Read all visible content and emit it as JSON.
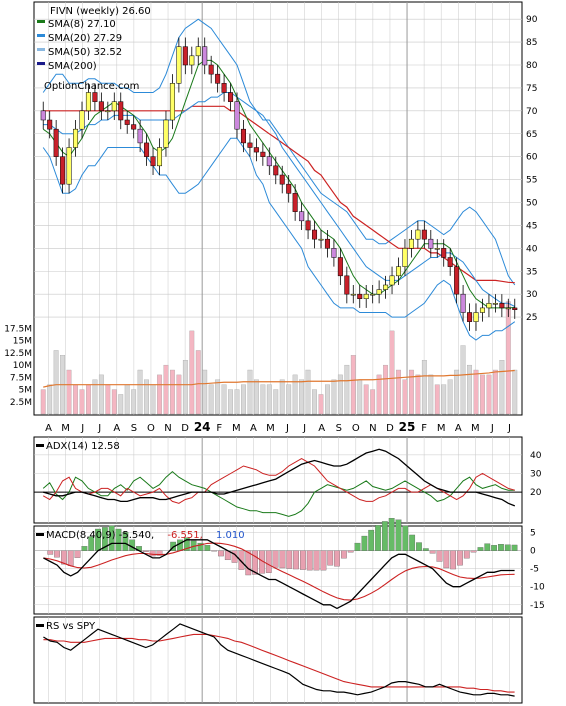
{
  "colors": {
    "frame": "#000000",
    "grid": "#c8c8c8",
    "up_candle": "#ffff66",
    "down_candle": "#c8202a",
    "bear_candle": "#cc88dd",
    "sma8": "#1a7a1a",
    "sma20": "#2c8ad8",
    "sma50": "#cc2222",
    "sma200": "#1a1a8a",
    "bband": "#2c8ad8",
    "vol_up": "#f4b6c2",
    "vol_down": "#d8d8d8",
    "vol_avg": "#e07830",
    "adx": "#000000",
    "di_plus": "#1a7a1a",
    "di_minus": "#cc2222",
    "macd": "#000000",
    "signal": "#cc2222",
    "hist_up": "#66bb66",
    "hist_down": "#e8a0b0",
    "rs_line": "#000000",
    "rs_ma": "#cc2222"
  },
  "chart_data": [
    {
      "type": "candlestick",
      "panel": "price",
      "title": "FIVN (weekly) 26.60",
      "watermark": "OptionChance.com",
      "legend": [
        {
          "label": "SMA(8) 27.10",
          "color": "#1a7a1a"
        },
        {
          "label": "SMA(20) 27.29",
          "color": "#2c8ad8"
        },
        {
          "label": "SMA(50) 32.52",
          "color": "#8ab8e0"
        },
        {
          "label": "SMA(200)",
          "color": "#1a1a8a"
        }
      ],
      "legend_placement": "top-left",
      "x_tick_labels": [
        "A",
        "M",
        "J",
        "J",
        "A",
        "S",
        "O",
        "N",
        "D",
        "24",
        "F",
        "M",
        "A",
        "M",
        "J",
        "J",
        "A",
        "S",
        "O",
        "N",
        "D",
        "25",
        "F",
        "M",
        "A",
        "M",
        "J",
        "J"
      ],
      "y_ticks": [
        25,
        30,
        35,
        40,
        45,
        50,
        55,
        60,
        65,
        70,
        75,
        80,
        85,
        90
      ],
      "ylim": [
        20,
        92
      ],
      "close": [
        68,
        66,
        60,
        54,
        62,
        66,
        70,
        74,
        72,
        70,
        70,
        72,
        68,
        67,
        66,
        63,
        60,
        58,
        62,
        68,
        76,
        84,
        80,
        82,
        84,
        80,
        78,
        76,
        74,
        72,
        66,
        63,
        62,
        61,
        60,
        58,
        56,
        54,
        52,
        48,
        46,
        44,
        42,
        42,
        40,
        38,
        34,
        30,
        30,
        29,
        30,
        30,
        31,
        32,
        34,
        36,
        40,
        42,
        44,
        42,
        40,
        40,
        38,
        36,
        30,
        26,
        24,
        26,
        27,
        28,
        28,
        27,
        27,
        26.6
      ],
      "sma8": [
        66,
        65,
        63,
        61,
        60,
        62,
        64,
        67,
        69,
        70,
        71,
        72,
        71,
        70,
        69,
        67,
        65,
        62,
        61,
        62,
        64,
        68,
        72,
        76,
        80,
        81,
        81,
        80,
        78,
        76,
        73,
        70,
        67,
        65,
        63,
        61,
        59,
        57,
        55,
        53,
        50,
        48,
        46,
        44,
        43,
        42,
        40,
        37,
        34,
        32,
        31,
        30,
        30,
        31,
        32,
        33,
        35,
        37,
        39,
        41,
        41,
        41,
        41,
        40,
        37,
        34,
        31,
        29,
        28,
        27,
        27,
        27,
        27,
        27.1
      ],
      "sma20": [
        67,
        67,
        66,
        65,
        65,
        65,
        66,
        67,
        67,
        68,
        68,
        69,
        69,
        69,
        69,
        68,
        68,
        68,
        68,
        68,
        68,
        69,
        70,
        71,
        72,
        72,
        73,
        73,
        74,
        74,
        73,
        72,
        71,
        70,
        69,
        67,
        65,
        62,
        60,
        58,
        56,
        54,
        52,
        50,
        48,
        46,
        44,
        42,
        40,
        38,
        36,
        35,
        34,
        33,
        33,
        33,
        34,
        35,
        36,
        37,
        38,
        38,
        39,
        39,
        38,
        37,
        35,
        33,
        31,
        30,
        29,
        28,
        28,
        27.3
      ],
      "sma50": [
        70,
        70,
        70,
        70,
        70,
        70,
        70,
        70,
        70,
        70,
        70,
        70,
        70,
        70,
        70,
        70,
        70,
        70,
        70,
        70,
        70,
        70,
        70,
        71,
        71,
        71,
        71,
        71,
        71,
        70,
        70,
        69,
        68,
        67,
        66,
        65,
        64,
        63,
        62,
        61,
        60,
        59,
        57,
        56,
        54,
        52,
        50,
        49,
        47,
        46,
        45,
        44,
        43,
        42,
        41,
        40,
        40,
        40,
        40,
        40,
        39,
        39,
        38,
        37,
        36,
        35,
        34,
        33,
        33,
        33,
        33,
        32.8,
        32.6,
        32.5
      ],
      "bb_upper": [
        74,
        76,
        78,
        78,
        76,
        76,
        76,
        77,
        77,
        76,
        76,
        76,
        75,
        75,
        74,
        74,
        74,
        74,
        75,
        78,
        82,
        86,
        88,
        89,
        90,
        89,
        88,
        86,
        84,
        82,
        80,
        76,
        72,
        70,
        68,
        68,
        66,
        64,
        62,
        60,
        58,
        56,
        54,
        52,
        51,
        50,
        49,
        48,
        46,
        44,
        42,
        42,
        41,
        41,
        42,
        43,
        44,
        45,
        46,
        46,
        45,
        44,
        43,
        44,
        46,
        48,
        49,
        48,
        46,
        44,
        42,
        38,
        34,
        32
      ],
      "bb_lower": [
        62,
        60,
        56,
        52,
        52,
        53,
        56,
        58,
        58,
        60,
        62,
        62,
        62,
        62,
        62,
        62,
        60,
        58,
        56,
        56,
        54,
        52,
        52,
        53,
        54,
        56,
        58,
        60,
        62,
        64,
        64,
        62,
        60,
        56,
        54,
        50,
        48,
        46,
        44,
        42,
        40,
        36,
        34,
        32,
        30,
        28,
        27,
        27,
        27,
        26,
        26,
        26,
        26,
        26,
        25,
        25,
        25,
        26,
        27,
        28,
        30,
        32,
        33,
        32,
        28,
        24,
        21,
        20,
        21,
        21,
        22,
        22,
        23,
        24
      ]
    },
    {
      "type": "bar",
      "panel": "volume",
      "y_ticks": [
        "2.5M",
        "5M",
        "7.5M",
        "10M",
        "12.5M",
        "15M",
        "17.5M"
      ],
      "ylim": [
        0,
        18000000
      ],
      "values_millions": [
        5,
        6,
        13,
        12,
        9,
        6,
        5,
        6,
        7,
        8,
        6,
        5,
        4,
        6,
        5,
        9,
        7,
        6,
        8,
        10,
        9,
        8,
        11,
        17,
        13,
        9,
        6,
        7,
        6,
        5,
        5,
        6,
        9,
        7,
        6,
        6,
        5,
        7,
        6,
        8,
        7,
        9,
        5,
        4,
        6,
        7,
        8,
        10,
        12,
        7,
        6,
        5,
        8,
        10,
        17,
        9,
        7,
        9,
        8,
        11,
        8,
        6,
        6,
        7,
        9,
        14,
        10,
        9,
        8,
        8,
        9,
        11,
        23,
        9
      ],
      "avg_millions": [
        5.5,
        5.8,
        6,
        6,
        6,
        6,
        6,
        6,
        6,
        6,
        6,
        6,
        6,
        6,
        6,
        6,
        6,
        6,
        6,
        6,
        6,
        6,
        6,
        6,
        6.2,
        6.2,
        6.3,
        6.4,
        6.5,
        6.5,
        6.5,
        6.6,
        6.6,
        6.6,
        6.6,
        6.6,
        6.6,
        6.6,
        6.6,
        6.6,
        6.6,
        6.7,
        6.7,
        6.7,
        6.7,
        6.7,
        6.8,
        6.8,
        6.9,
        7,
        7,
        7,
        7.1,
        7.2,
        7.3,
        7.4,
        7.5,
        7.6,
        7.7,
        7.8,
        7.8,
        7.8,
        7.8,
        7.9,
        7.9,
        8,
        8.1,
        8.2,
        8.3,
        8.4,
        8.6,
        8.7,
        8.8,
        8.9
      ]
    },
    {
      "type": "line",
      "panel": "adx",
      "title": "ADX(14) 12.58",
      "y_ticks": [
        20,
        30,
        40
      ],
      "ylim": [
        5,
        48
      ],
      "adx": [
        20,
        19,
        18,
        18,
        19,
        20,
        20,
        19,
        18,
        17,
        16,
        16,
        15,
        15,
        16,
        17,
        17,
        17,
        16,
        16,
        17,
        18,
        19,
        20,
        20,
        20,
        20,
        19,
        19,
        20,
        21,
        22,
        23,
        24,
        25,
        26,
        27,
        29,
        31,
        33,
        35,
        36,
        37,
        36,
        35,
        34,
        34,
        35,
        37,
        39,
        41,
        42,
        43,
        42,
        40,
        38,
        35,
        32,
        29,
        26,
        24,
        22,
        21,
        20,
        20,
        20,
        20,
        20,
        19,
        18,
        17,
        16,
        14,
        12.6
      ],
      "di_plus": [
        22,
        25,
        19,
        16,
        20,
        28,
        26,
        22,
        20,
        18,
        18,
        22,
        24,
        21,
        26,
        28,
        25,
        22,
        24,
        28,
        31,
        28,
        26,
        24,
        23,
        22,
        20,
        18,
        16,
        14,
        12,
        11,
        10,
        10,
        9,
        9,
        9,
        8,
        7,
        8,
        10,
        14,
        20,
        22,
        24,
        23,
        22,
        21,
        22,
        24,
        26,
        23,
        22,
        21,
        22,
        24,
        26,
        24,
        22,
        20,
        18,
        15,
        16,
        18,
        22,
        26,
        28,
        24,
        22,
        23,
        24,
        22,
        21,
        21
      ],
      "di_minus": [
        18,
        16,
        20,
        26,
        28,
        22,
        20,
        19,
        20,
        22,
        22,
        20,
        18,
        22,
        20,
        18,
        19,
        20,
        22,
        18,
        15,
        14,
        16,
        17,
        20,
        20,
        24,
        26,
        28,
        30,
        32,
        34,
        33,
        32,
        30,
        29,
        29,
        31,
        34,
        36,
        38,
        36,
        34,
        30,
        26,
        24,
        22,
        20,
        18,
        16,
        15,
        15,
        17,
        18,
        20,
        22,
        22,
        20,
        20,
        22,
        24,
        22,
        20,
        18,
        16,
        18,
        22,
        28,
        30,
        28,
        26,
        24,
        22,
        21
      ]
    },
    {
      "type": "line",
      "panel": "macd",
      "title": "MACD(8,40,9) -5.540,",
      "signal_label": "-6.551,",
      "hist_label": "1.010",
      "y_ticks": [
        5,
        0,
        -5,
        -10,
        -15
      ],
      "ylim": [
        -17,
        6
      ],
      "macd": [
        -2,
        -3,
        -4,
        -6,
        -7,
        -6,
        -4,
        -2,
        0,
        1,
        2,
        2,
        2,
        1,
        0,
        -1,
        -2,
        -2,
        -1,
        1,
        2,
        3,
        3,
        3,
        3,
        2,
        1,
        0,
        -1,
        -3,
        -5,
        -6,
        -7,
        -8,
        -8,
        -9,
        -10,
        -11,
        -12,
        -13,
        -14,
        -15,
        -15,
        -16,
        -15,
        -14,
        -12,
        -10,
        -8,
        -6,
        -4,
        -2,
        -1,
        -1,
        -2,
        -3,
        -4,
        -5,
        -7,
        -9,
        -10,
        -10,
        -9,
        -8,
        -7,
        -6,
        -6,
        -5.5,
        -5.5,
        -5.5
      ],
      "signal": [
        -2,
        -2.3,
        -2.8,
        -3.5,
        -4.2,
        -4.7,
        -4.8,
        -4.6,
        -4,
        -3.3,
        -2.6,
        -2,
        -1.4,
        -1,
        -0.8,
        -0.8,
        -1,
        -1.1,
        -1,
        -0.6,
        0,
        0.6,
        1.2,
        1.6,
        2,
        2.1,
        2,
        1.7,
        1.2,
        0.5,
        -0.5,
        -1.6,
        -2.8,
        -3.9,
        -4.9,
        -5.8,
        -6.7,
        -7.6,
        -8.5,
        -9.4,
        -10.4,
        -11.4,
        -12.3,
        -13.1,
        -13.6,
        -13.7,
        -13.4,
        -12.7,
        -11.8,
        -10.7,
        -9.4,
        -8,
        -6.7,
        -5.6,
        -4.9,
        -4.5,
        -4.4,
        -4.5,
        -5,
        -5.8,
        -6.6,
        -7.3,
        -7.6,
        -7.7,
        -7.6,
        -7.3,
        -7,
        -6.7,
        -6.6,
        -6.55
      ]
    },
    {
      "type": "line",
      "panel": "rs",
      "title": "RS vs SPY",
      "rs": [
        68,
        65,
        64,
        60,
        58,
        62,
        66,
        70,
        74,
        72,
        70,
        68,
        66,
        64,
        62,
        60,
        62,
        66,
        70,
        74,
        78,
        76,
        74,
        72,
        70,
        68,
        62,
        58,
        56,
        54,
        52,
        50,
        48,
        46,
        44,
        42,
        40,
        36,
        32,
        30,
        28,
        27,
        27,
        26,
        26,
        25,
        24,
        25,
        26,
        28,
        30,
        33,
        34,
        34,
        33,
        32,
        30,
        30,
        32,
        30,
        28,
        26,
        25,
        24,
        24,
        25,
        25,
        24,
        24,
        23
      ],
      "rs_ma": [
        66,
        66,
        65,
        65,
        64,
        64,
        64,
        65,
        66,
        67,
        67,
        67,
        67,
        67,
        66,
        66,
        65,
        65,
        66,
        67,
        68,
        69,
        70,
        70,
        70,
        69,
        68,
        67,
        65,
        64,
        62,
        60,
        58,
        56,
        54,
        52,
        50,
        48,
        46,
        44,
        42,
        40,
        38,
        36,
        34,
        33,
        32,
        31,
        30,
        30,
        30,
        30,
        30,
        30,
        30,
        30,
        30,
        30,
        30,
        30,
        30,
        30,
        29,
        29,
        28,
        28,
        27,
        27,
        26,
        26
      ]
    }
  ]
}
